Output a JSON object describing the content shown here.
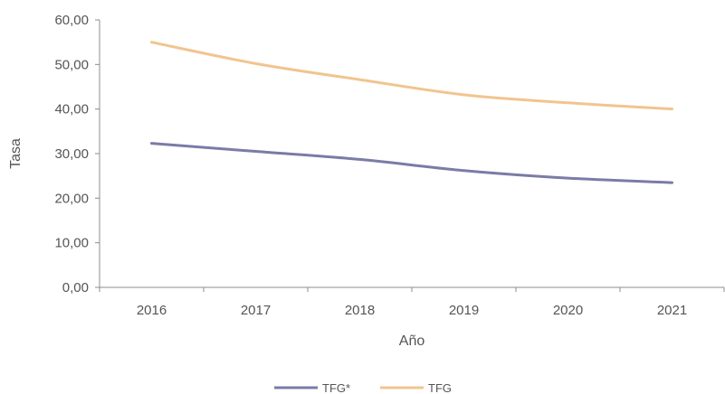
{
  "chart_data": {
    "type": "line",
    "title": "",
    "xlabel": "Año",
    "ylabel": "Tasa",
    "categories": [
      "2016",
      "2017",
      "2018",
      "2019",
      "2020",
      "2021"
    ],
    "ylim": [
      0,
      60
    ],
    "yticks": [
      0,
      10,
      20,
      30,
      40,
      50,
      60
    ],
    "ytick_labels": [
      "0,00",
      "10,00",
      "20,00",
      "30,00",
      "40,00",
      "50,00",
      "60,00"
    ],
    "grid": false,
    "legend_position": "bottom-center",
    "series": [
      {
        "name": "TFG*",
        "color": "#7b7ba8",
        "values": [
          32.3,
          30.5,
          28.7,
          26.2,
          24.5,
          23.5
        ]
      },
      {
        "name": "TFG",
        "color": "#f2c48f",
        "values": [
          55.0,
          50.2,
          46.6,
          43.2,
          41.4,
          40.0
        ]
      }
    ]
  }
}
